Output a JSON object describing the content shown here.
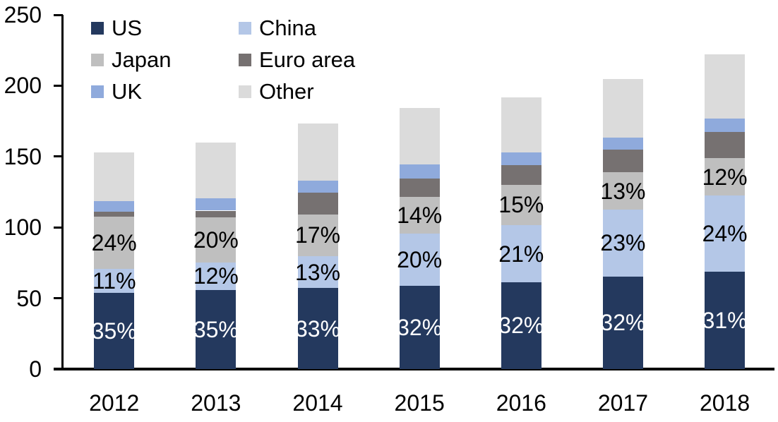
{
  "chart_data": {
    "type": "bar",
    "stacked": true,
    "title": "",
    "categories": [
      "2012",
      "2013",
      "2014",
      "2015",
      "2016",
      "2017",
      "2018"
    ],
    "series": [
      {
        "name": "US",
        "color": "#24395E",
        "label_color": "#FFFFFF",
        "values": [
          53.8,
          56.0,
          57.2,
          58.9,
          61.3,
          65.4,
          68.9
        ],
        "pct_labels": [
          "35%",
          "35%",
          "33%",
          "32%",
          "32%",
          "32%",
          "31%"
        ]
      },
      {
        "name": "China",
        "color": "#B4C7E7",
        "label_color": "#000000",
        "values": [
          16.9,
          19.2,
          22.5,
          36.8,
          40.2,
          47.0,
          53.4
        ],
        "pct_labels": [
          "11%",
          "12%",
          "13%",
          "20%",
          "21%",
          "23%",
          "24%"
        ]
      },
      {
        "name": "Japan",
        "color": "#BFBFBF",
        "label_color": "#000000",
        "values": [
          36.8,
          32.0,
          29.5,
          25.8,
          28.7,
          26.6,
          26.7
        ],
        "pct_labels": [
          "24%",
          "20%",
          "17%",
          "14%",
          "15%",
          "13%",
          "12%"
        ]
      },
      {
        "name": "Euro area",
        "color": "#767171",
        "values": [
          3.4,
          4.6,
          15.5,
          13.1,
          13.7,
          15.8,
          18.5
        ]
      },
      {
        "name": "UK",
        "color": "#8FAADC",
        "values": [
          7.7,
          8.8,
          8.5,
          9.7,
          9.1,
          8.3,
          9.1
        ]
      },
      {
        "name": "Other",
        "color": "#DBDBDB",
        "values": [
          34.4,
          39.4,
          40.1,
          39.8,
          38.7,
          41.4,
          45.7
        ]
      }
    ],
    "ylim": [
      0,
      250
    ],
    "yticks": [
      "0",
      "50",
      "100",
      "150",
      "200",
      "250"
    ],
    "grid": false,
    "legend": {
      "position": "top-left-inside",
      "items": [
        "US",
        "China",
        "Japan",
        "Euro area",
        "UK",
        "Other"
      ]
    },
    "axis_color": "#000000",
    "text_color": "#000000",
    "background_color": "#FFFFFF"
  }
}
